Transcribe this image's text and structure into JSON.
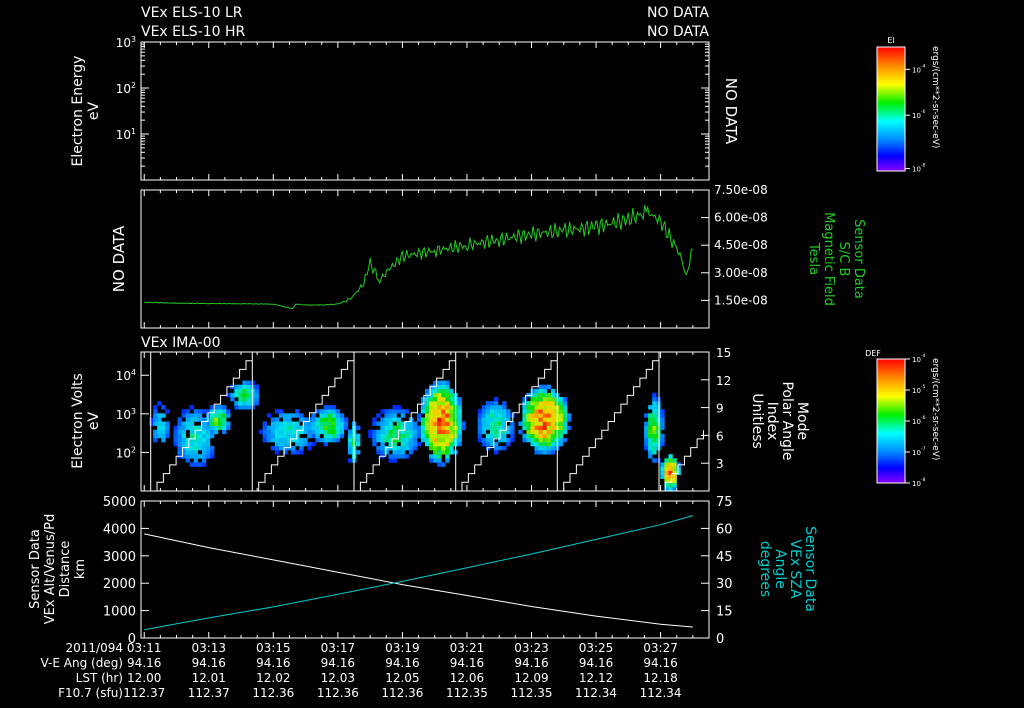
{
  "colors": {
    "background": "#000000",
    "text": "#ffffff",
    "mag": "#22cc22",
    "sza": "#00cccc",
    "alt": "#ffffff",
    "sweep": "#ffffff"
  },
  "header": {
    "lr_label": "VEx ELS-10 LR",
    "lr_status": "NO DATA",
    "hr_label": "VEx ELS-10 HR",
    "hr_status": "NO DATA"
  },
  "chart_data": [
    {
      "type": "heatmap",
      "title": "VEx ELS-10 LR / VEx ELS-10 HR",
      "ylabel": [
        "Electron Energy",
        "eV"
      ],
      "yscale": "log",
      "ylim": [
        1,
        1000
      ],
      "yticks": [
        {
          "exp": "1",
          "value": 10
        },
        {
          "exp": "2",
          "value": 100
        },
        {
          "exp": "3",
          "value": 1000
        }
      ],
      "status": "NO DATA",
      "colorbar": {
        "title": "El",
        "unit": "ergs/(cm**2-sr-sec-eV)",
        "tick_labels": [
          {
            "exp": "-4",
            "pos": 0.18
          },
          {
            "exp": "-6",
            "pos": 0.55
          },
          {
            "exp": "-8",
            "pos": 0.98
          }
        ]
      }
    },
    {
      "type": "line",
      "ylabel": [
        "Sensor Data",
        "S/C B",
        "Magnetic Field",
        "Tesla"
      ],
      "left_label": "NO DATA",
      "ylim": [
        0,
        7.5e-08
      ],
      "yticks": [
        {
          "label": "7.50e-08",
          "value": 7.5e-08
        },
        {
          "label": "6.00e-08",
          "value": 6e-08
        },
        {
          "label": "4.50e-08",
          "value": 4.5e-08
        },
        {
          "label": "3.00e-08",
          "value": 3e-08
        },
        {
          "label": "1.50e-08",
          "value": 1.5e-08
        }
      ],
      "series": [
        {
          "name": "S/C B",
          "t": [
            11.0,
            12.0,
            13.0,
            14.0,
            15.0,
            15.6,
            15.7,
            16.0,
            16.5,
            17.0,
            17.4,
            17.8,
            18.0,
            18.3,
            18.6,
            19.0,
            20.0,
            21.0,
            22.0,
            23.0,
            24.0,
            25.0,
            26.0,
            26.6,
            27.0,
            27.4,
            27.6,
            27.8,
            28.0
          ],
          "values": [
            1.4e-08,
            1.35e-08,
            1.33e-08,
            1.32e-08,
            1.3e-08,
            1.05e-08,
            1.3e-08,
            1.25e-08,
            1.25e-08,
            1.3e-08,
            1.6e-08,
            2.4e-08,
            3.5e-08,
            2.6e-08,
            3.2e-08,
            3.9e-08,
            4.2e-08,
            4.5e-08,
            4.8e-08,
            5.1e-08,
            5.3e-08,
            5.5e-08,
            5.9e-08,
            6.3e-08,
            5.8e-08,
            4.6e-08,
            4e-08,
            2.9e-08,
            4.3e-08
          ]
        }
      ]
    },
    {
      "type": "heatmap",
      "title": "VEx IMA-00",
      "ylabel": [
        "Electron Volts",
        "eV"
      ],
      "yscale": "log",
      "ylim": [
        10,
        40000
      ],
      "yticks": [
        {
          "exp": "2",
          "value": 100
        },
        {
          "exp": "3",
          "value": 1000
        },
        {
          "exp": "4",
          "value": 10000
        }
      ],
      "right_ylabel": [
        "Mode",
        "Polar Angle",
        "Index",
        "Unitless"
      ],
      "right_ylim": [
        0,
        15
      ],
      "right_yticks": [
        "3",
        "6",
        "9",
        "12",
        "15"
      ],
      "sweep_starts": [
        11.2,
        14.35,
        17.5,
        20.65,
        23.8,
        26.95
      ],
      "sweep_period": 3.15,
      "blobs": [
        {
          "t": 11.5,
          "e": 500,
          "w": 0.3,
          "h": 0.6,
          "peak": 0.35
        },
        {
          "t": 12.6,
          "e": 250,
          "w": 0.7,
          "h": 0.8,
          "peak": 0.4
        },
        {
          "t": 13.3,
          "e": 700,
          "w": 0.4,
          "h": 0.4,
          "peak": 0.55
        },
        {
          "t": 14.1,
          "e": 3000,
          "w": 0.5,
          "h": 0.4,
          "peak": 0.45
        },
        {
          "t": 15.5,
          "e": 350,
          "w": 0.9,
          "h": 0.6,
          "peak": 0.4
        },
        {
          "t": 16.7,
          "e": 500,
          "w": 0.6,
          "h": 0.5,
          "peak": 0.55
        },
        {
          "t": 17.5,
          "e": 180,
          "w": 0.2,
          "h": 0.6,
          "peak": 0.5
        },
        {
          "t": 18.8,
          "e": 300,
          "w": 0.8,
          "h": 0.7,
          "peak": 0.45
        },
        {
          "t": 20.2,
          "e": 600,
          "w": 0.7,
          "h": 1.1,
          "peak": 0.9
        },
        {
          "t": 21.9,
          "e": 500,
          "w": 0.6,
          "h": 0.7,
          "peak": 0.45
        },
        {
          "t": 23.4,
          "e": 700,
          "w": 0.8,
          "h": 0.9,
          "peak": 0.88
        },
        {
          "t": 26.8,
          "e": 400,
          "w": 0.3,
          "h": 0.9,
          "peak": 0.55
        },
        {
          "t": 27.3,
          "e": 30,
          "w": 0.3,
          "h": 0.5,
          "peak": 0.85
        }
      ],
      "colorbar": {
        "title": "DEF",
        "unit": "ergs/(cm**2-sr-sec-eV)",
        "tick_labels": [
          {
            "exp": "-4",
            "pos": 0.0
          },
          {
            "exp": "-5",
            "pos": 0.25
          },
          {
            "exp": "-6",
            "pos": 0.5
          },
          {
            "exp": "-7",
            "pos": 0.75
          },
          {
            "exp": "-8",
            "pos": 1.0
          }
        ]
      }
    },
    {
      "type": "line",
      "ylabel": [
        "Sensor Data",
        "VEx Alt/Venus/Pd",
        "Distance",
        "km"
      ],
      "ylim": [
        0,
        5000
      ],
      "yticks": [
        "0",
        "1000",
        "2000",
        "3000",
        "4000",
        "5000"
      ],
      "right_ylabel": [
        "Sensor Data",
        "VEx SZA",
        "Angle",
        "degrees"
      ],
      "right_ylim": [
        0,
        75
      ],
      "right_yticks": [
        "0",
        "15",
        "30",
        "45",
        "60",
        "75"
      ],
      "series": [
        {
          "name": "VEx Alt",
          "t": [
            11,
            13,
            15,
            17,
            19,
            21,
            23,
            25,
            27,
            28
          ],
          "values": [
            3800,
            3300,
            2850,
            2400,
            1950,
            1550,
            1150,
            800,
            500,
            400
          ]
        },
        {
          "name": "VEx SZA",
          "t": [
            11,
            13,
            15,
            17,
            19,
            21,
            23,
            25,
            27,
            28
          ],
          "values": [
            4.5,
            11,
            17,
            24,
            31,
            38.5,
            46,
            54,
            62,
            67
          ]
        }
      ]
    }
  ],
  "x_axis": {
    "t_range": [
      10.9,
      28.5
    ],
    "date_label": "2011/094",
    "row_labels": [
      "V-E Ang (deg)",
      "LST (hr)",
      "F10.7 (sfu)"
    ],
    "ticks": [
      {
        "t": 11,
        "time": "03:11",
        "vea": "94.16",
        "lst": "12.00",
        "f107": "112.37"
      },
      {
        "t": 13,
        "time": "03:13",
        "vea": "94.16",
        "lst": "12.01",
        "f107": "112.37"
      },
      {
        "t": 15,
        "time": "03:15",
        "vea": "94.16",
        "lst": "12.02",
        "f107": "112.36"
      },
      {
        "t": 17,
        "time": "03:17",
        "vea": "94.16",
        "lst": "12.03",
        "f107": "112.36"
      },
      {
        "t": 19,
        "time": "03:19",
        "vea": "94.16",
        "lst": "12.05",
        "f107": "112.36"
      },
      {
        "t": 21,
        "time": "03:21",
        "vea": "94.16",
        "lst": "12.06",
        "f107": "112.35"
      },
      {
        "t": 23,
        "time": "03:23",
        "vea": "94.16",
        "lst": "12.09",
        "f107": "112.35"
      },
      {
        "t": 25,
        "time": "03:25",
        "vea": "94.16",
        "lst": "12.12",
        "f107": "112.34"
      },
      {
        "t": 27,
        "time": "03:27",
        "vea": "94.16",
        "lst": "12.18",
        "f107": "112.34"
      }
    ]
  }
}
